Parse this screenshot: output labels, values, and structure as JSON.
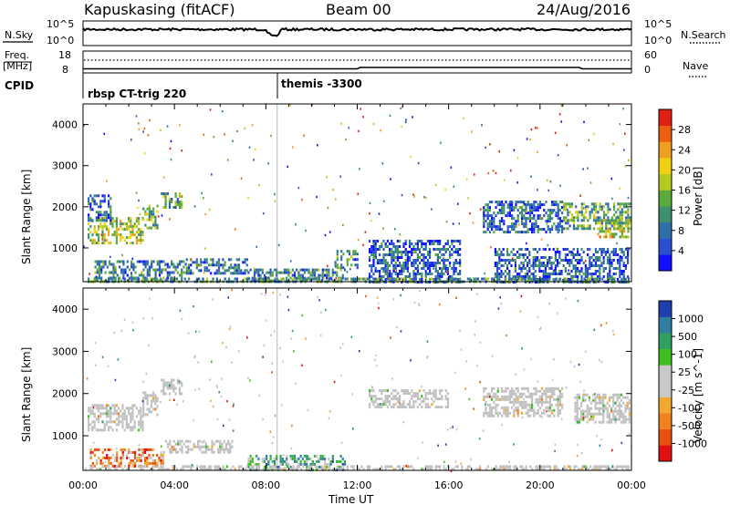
{
  "header": {
    "station": "Kapuskasing (fitACF)",
    "beam": "Beam 00",
    "date": "24/Aug/2016"
  },
  "top_panels": {
    "nsky_label": "N.Sky",
    "nsky_ticks": [
      "10^5",
      "10^0"
    ],
    "nsearch_label": "N.Search",
    "nsearch_ticks": [
      "10^5",
      "10^0"
    ],
    "freq_label": "Freq.",
    "freq_unit": "[MHz]",
    "freq_ticks": [
      "18",
      "8"
    ],
    "nave_label": "Nave",
    "nave_ticks": [
      "60",
      "0"
    ],
    "cpid_label": "CPID",
    "cpid_segments": [
      {
        "start_hour": 0.0,
        "label": "rbsp CT-trig 220"
      },
      {
        "start_hour": 8.5,
        "label": "themis -3300"
      }
    ]
  },
  "time_axis": {
    "label": "Time UT",
    "ticks": [
      "00:00",
      "04:00",
      "08:00",
      "12:00",
      "16:00",
      "20:00",
      "00:00"
    ],
    "range_hours": [
      0,
      24
    ]
  },
  "colors": {
    "power_scale": [
      "#1010ff",
      "#2a4fd0",
      "#2f6fa8",
      "#3d8f6e",
      "#5aab3a",
      "#b8c820",
      "#f0d010",
      "#f0a020",
      "#e86010",
      "#e02010"
    ],
    "velocity_scale": [
      "#e01010",
      "#e85010",
      "#f08020",
      "#f0a830",
      "#c8c8c8",
      "#c8c8c8",
      "#40c020",
      "#30a060",
      "#2f7fa0",
      "#1f3fb0"
    ],
    "ground_scatter": "#c0c0c0"
  },
  "chart_data": [
    {
      "type": "heatmap",
      "xlabel": "",
      "ylabel": "Slant Range [km]",
      "xlim": [
        0,
        24
      ],
      "ylim": [
        180,
        4500
      ],
      "yticks": [
        1000,
        2000,
        3000,
        4000
      ],
      "colorbar": {
        "label": "Power [dB]",
        "ticks": [
          "4",
          "8",
          "12",
          "16",
          "20",
          "24",
          "28"
        ],
        "range": [
          0,
          30
        ]
      },
      "regions": [
        {
          "t0": 0.2,
          "t1": 2.6,
          "r0": 1150,
          "r1": 1750,
          "level": 0.55
        },
        {
          "t0": 2.6,
          "t1": 3.3,
          "r0": 1500,
          "r1": 2050,
          "level": 0.45
        },
        {
          "t0": 3.4,
          "t1": 4.3,
          "r0": 2000,
          "r1": 2350,
          "level": 0.4
        },
        {
          "t0": 0.2,
          "t1": 1.2,
          "r0": 1700,
          "r1": 2300,
          "level": 0.2
        },
        {
          "t0": 0.5,
          "t1": 4.5,
          "r0": 220,
          "r1": 700,
          "level": 0.3
        },
        {
          "t0": 4.5,
          "t1": 7.2,
          "r0": 400,
          "r1": 750,
          "level": 0.25
        },
        {
          "t0": 7.2,
          "t1": 11.5,
          "r0": 200,
          "r1": 500,
          "level": 0.3
        },
        {
          "t0": 11.0,
          "t1": 12.0,
          "r0": 500,
          "r1": 950,
          "level": 0.3
        },
        {
          "t0": 12.5,
          "t1": 16.5,
          "r0": 200,
          "r1": 1200,
          "level": 0.2
        },
        {
          "t0": 17.5,
          "t1": 21.0,
          "r0": 1400,
          "r1": 2150,
          "level": 0.2
        },
        {
          "t0": 21.0,
          "t1": 23.9,
          "r0": 1500,
          "r1": 2100,
          "level": 0.4
        },
        {
          "t0": 22.5,
          "t1": 23.9,
          "r0": 1300,
          "r1": 1700,
          "level": 0.6
        },
        {
          "t0": 18.0,
          "t1": 23.8,
          "r0": 200,
          "r1": 1000,
          "level": 0.2
        },
        {
          "t0": 0.2,
          "t1": 23.9,
          "r0": 180,
          "r1": 280,
          "level": 0.35
        }
      ]
    },
    {
      "type": "heatmap",
      "xlabel": "Time UT",
      "ylabel": "Slant Range [km]",
      "xlim": [
        0,
        24
      ],
      "ylim": [
        180,
        4500
      ],
      "yticks": [
        1000,
        2000,
        3000,
        4000
      ],
      "colorbar": {
        "label": "Velocity [m s^-1]",
        "ticks": [
          "-1000",
          "-500",
          "-100",
          "-25",
          "25",
          "100",
          "500",
          "1000"
        ],
        "range": [
          -1200,
          1200
        ]
      },
      "regions": [
        {
          "t0": 0.2,
          "t1": 2.6,
          "r0": 1150,
          "r1": 1750,
          "level": 0.5
        },
        {
          "t0": 2.6,
          "t1": 3.3,
          "r0": 1500,
          "r1": 2050,
          "level": 0.5
        },
        {
          "t0": 3.4,
          "t1": 4.3,
          "r0": 2000,
          "r1": 2350,
          "level": 0.5
        },
        {
          "t0": 0.3,
          "t1": 3.5,
          "r0": 250,
          "r1": 700,
          "level": 0.25
        },
        {
          "t0": 3.5,
          "t1": 6.5,
          "r0": 600,
          "r1": 900,
          "level": 0.5
        },
        {
          "t0": 7.2,
          "t1": 11.5,
          "r0": 220,
          "r1": 550,
          "level": 0.7
        },
        {
          "t0": 12.5,
          "t1": 16.0,
          "r0": 1700,
          "r1": 2100,
          "level": 0.5
        },
        {
          "t0": 17.5,
          "t1": 21.0,
          "r0": 1500,
          "r1": 2150,
          "level": 0.5
        },
        {
          "t0": 21.5,
          "t1": 23.9,
          "r0": 1300,
          "r1": 2000,
          "level": 0.5
        },
        {
          "t0": 0.2,
          "t1": 23.9,
          "r0": 180,
          "r1": 300,
          "level": 0.5
        }
      ]
    }
  ]
}
